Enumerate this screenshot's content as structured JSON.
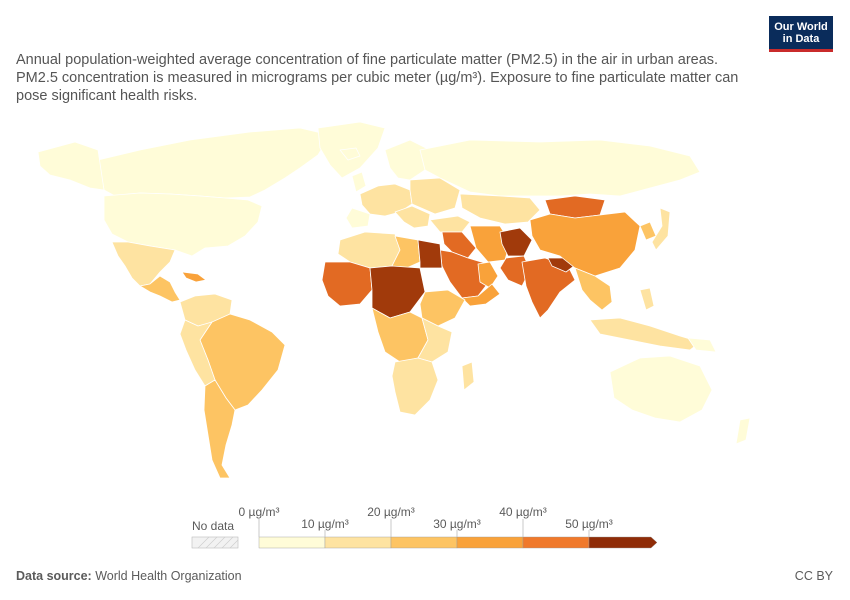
{
  "header": {
    "subtitle": "Annual population-weighted average concentration of fine particulate matter (PM2.5) in the air in urban areas. PM2.5 concentration is measured in micrograms per cubic meter (µg/m³). Exposure to fine particulate matter can pose significant health risks.",
    "logo_line1": "Our World",
    "logo_line2": "in Data"
  },
  "legend": {
    "no_data_label": "No data",
    "bins": [
      {
        "label_start": "0 µg/m³",
        "color": "#fffcd8"
      },
      {
        "label_start": "10 µg/m³",
        "color": "#fee3a1"
      },
      {
        "label_start": "20 µg/m³",
        "color": "#fdc463"
      },
      {
        "label_start": "30 µg/m³",
        "color": "#f9a23a"
      },
      {
        "label_start": "40 µg/m³",
        "color": "#f0792b"
      },
      {
        "label_start": "50 µg/m³",
        "color": "#d3531a"
      }
    ],
    "last_color": "#8f2c07"
  },
  "colors": {
    "ocean": "#ffffff",
    "border": "#ffffff",
    "b0": "#fffcd8",
    "b1": "#fee3a1",
    "b2": "#fdc463",
    "b3": "#f9a23a",
    "b4": "#e26a23",
    "b5": "#a13a0b"
  },
  "footer": {
    "source_label": "Data source:",
    "source_value": "World Health Organization",
    "license": "CC BY"
  }
}
